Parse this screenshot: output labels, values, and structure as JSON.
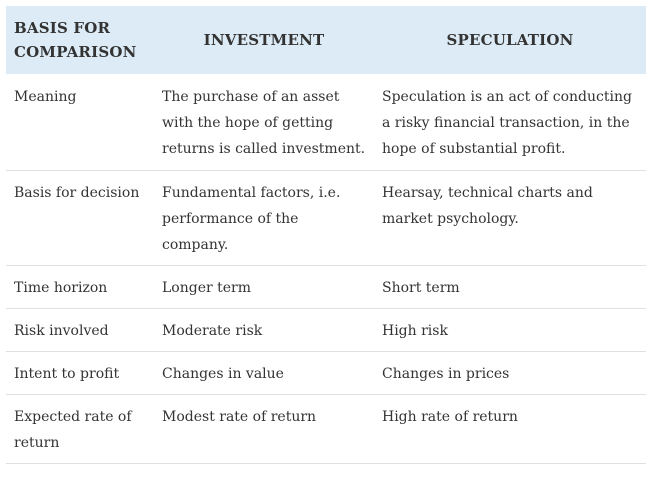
{
  "table": {
    "headers": [
      "BASIS FOR COMPARISON",
      "INVESTMENT",
      "SPECULATION"
    ],
    "rows": [
      [
        "Meaning",
        "The purchase of an asset with the hope of getting returns is called investment.",
        "Speculation is an act of conducting a risky financial transaction, in the hope of substantial profit."
      ],
      [
        "Basis for decision",
        "Fundamental factors, i.e. performance of the company.",
        "Hearsay, technical charts and market psychology."
      ],
      [
        "Time horizon",
        "Longer term",
        "Short term"
      ],
      [
        "Risk involved",
        "Moderate risk",
        "High risk"
      ],
      [
        "Intent to profit",
        "Changes in value",
        "Changes in prices"
      ],
      [
        "Expected rate of return",
        "Modest rate of return",
        "High rate of return"
      ]
    ]
  },
  "colors": {
    "header_bg": "#dcebf5",
    "text": "#333333",
    "row_border": "#e0e0e0"
  }
}
